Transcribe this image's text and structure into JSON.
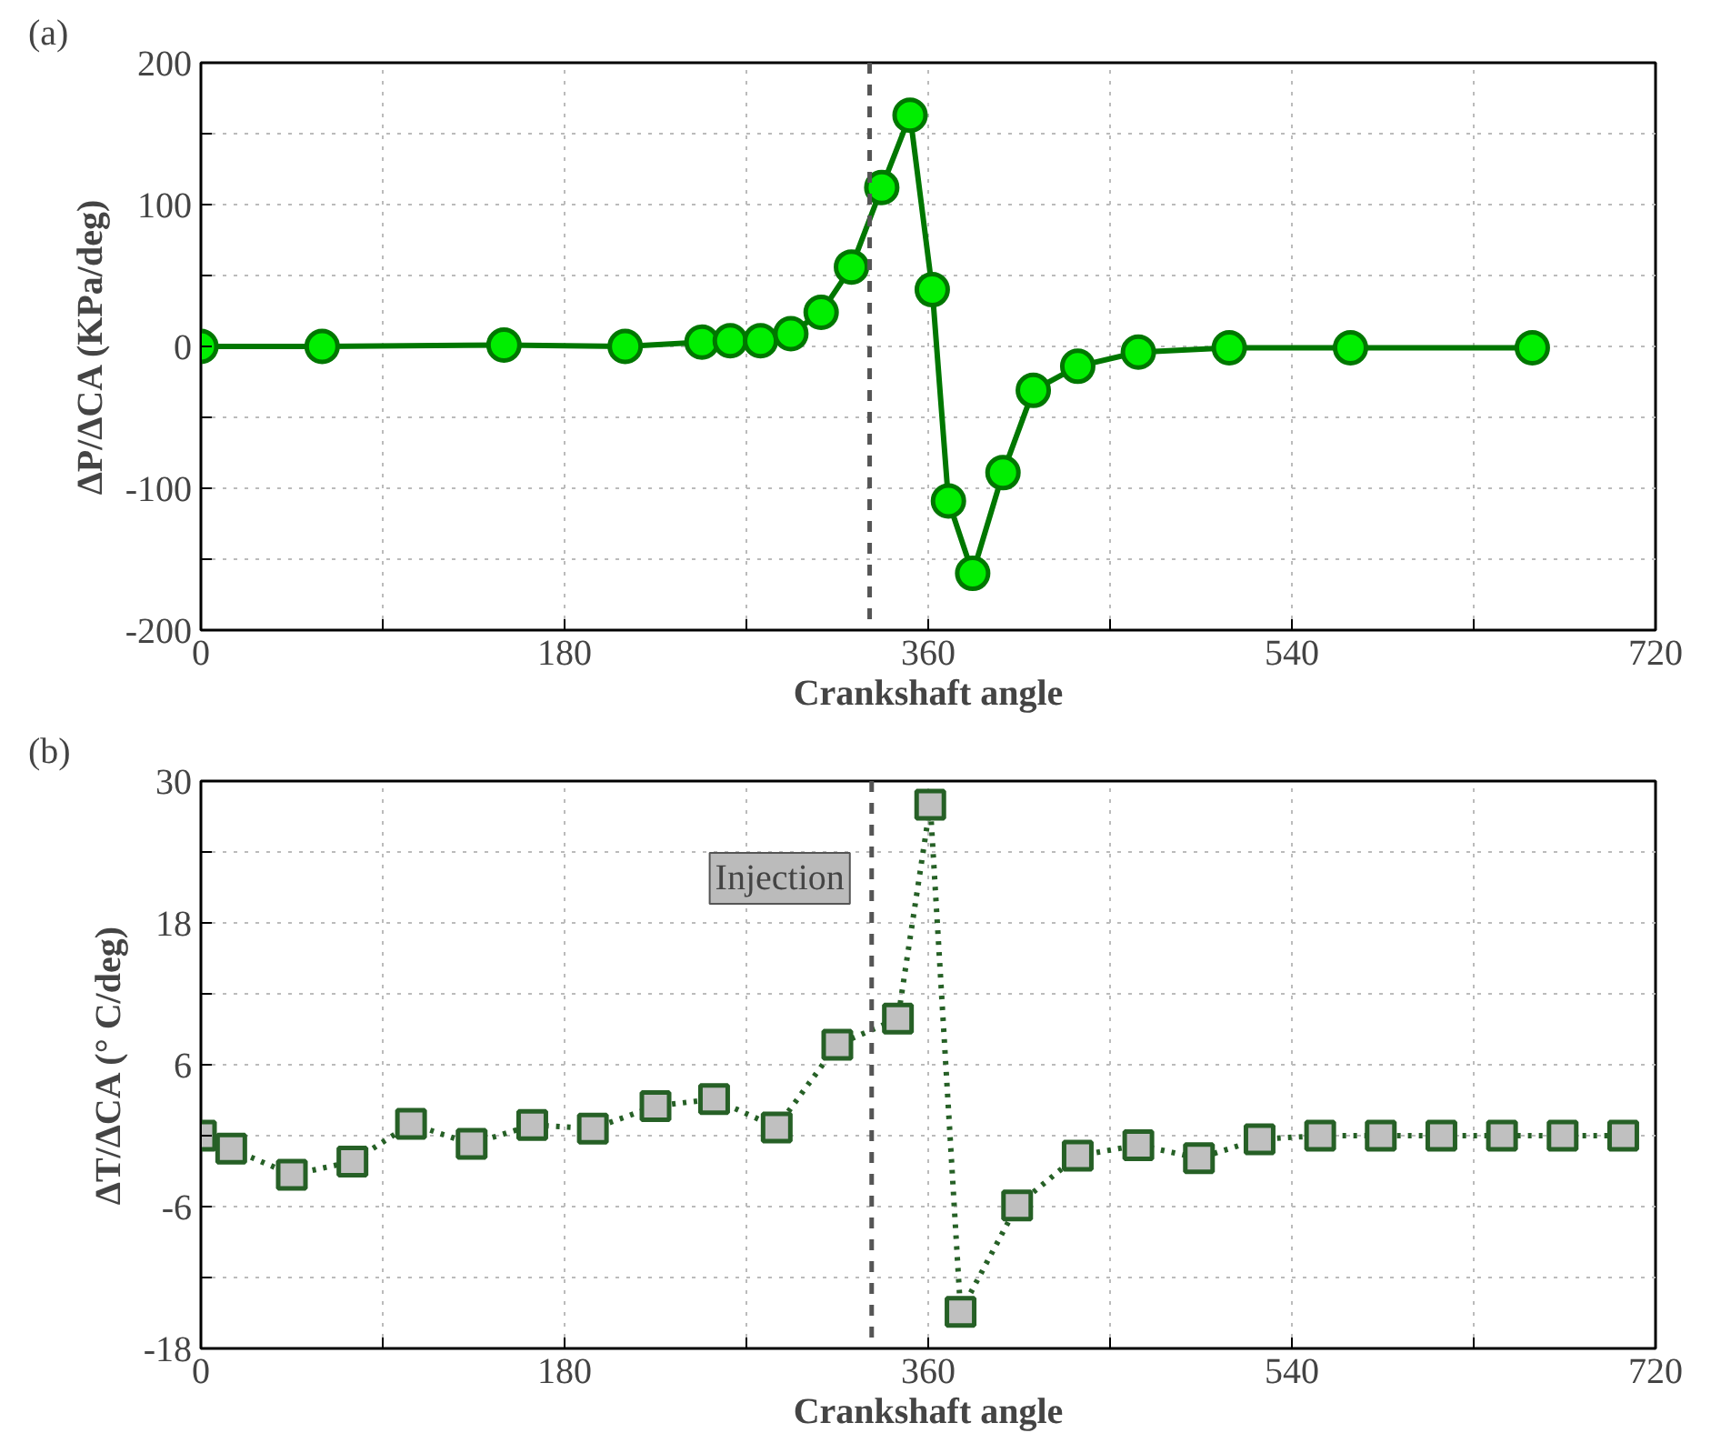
{
  "chart_data": [
    {
      "type": "line",
      "annotations": [
        "(a)"
      ],
      "xlabel": "Crankshaft angle",
      "ylabel": "ΔP/ΔCA (KPa/deg)",
      "xlim": [
        0,
        720
      ],
      "ylim": [
        -200,
        200
      ],
      "xticks": [
        0,
        {
          "value": 90,
          "label": null
        },
        180,
        {
          "value": 270,
          "label": null
        },
        360,
        {
          "value": 450,
          "label": null
        },
        540,
        {
          "value": 630,
          "label": null
        },
        720
      ],
      "yticks": [
        -200,
        {
          "value": -150,
          "label": null
        },
        -100,
        {
          "value": -50,
          "label": null
        },
        0,
        {
          "value": 50,
          "label": null
        },
        100,
        {
          "value": 150,
          "label": null
        },
        200
      ],
      "grid": true,
      "marker": "circle",
      "line_style": "solid",
      "ref_lines": [
        {
          "axis": "x",
          "value": 331,
          "color": "#555555",
          "line_style": "dashed"
        }
      ],
      "series": [
        {
          "color": "#00ee00",
          "x": [
            0,
            60,
            150,
            210,
            248,
            262,
            277,
            292,
            307,
            322,
            337,
            351,
            362,
            370,
            382,
            397,
            412,
            434,
            464,
            509,
            569,
            659
          ],
          "values": [
            0,
            0,
            1,
            0,
            3,
            4,
            4,
            9,
            24,
            56,
            112,
            163,
            40,
            -109,
            -160,
            -89,
            -31,
            -14,
            -4,
            -1,
            -1,
            -1
          ]
        }
      ]
    },
    {
      "type": "line",
      "annotations": [
        "(b)",
        {
          "text": "Injection",
          "x": 332,
          "y": 19
        }
      ],
      "xlabel": "Crankshaft angle",
      "ylabel": "ΔT/ΔCA (° C/deg)",
      "xlim": [
        0,
        720
      ],
      "ylim": [
        -18,
        30
      ],
      "xticks": [
        0,
        {
          "value": 90,
          "label": null
        },
        180,
        {
          "value": 270,
          "label": null
        },
        360,
        {
          "value": 450,
          "label": null
        },
        540,
        {
          "value": 630,
          "label": null
        },
        720
      ],
      "yticks": [
        -18,
        {
          "value": -12,
          "label": null
        },
        -6,
        {
          "value": 0,
          "label": null
        },
        6,
        {
          "value": 12,
          "label": null
        },
        18,
        {
          "value": 24,
          "label": null
        },
        30
      ],
      "grid": true,
      "marker": "square",
      "line_style": "dotted",
      "ref_lines": [
        {
          "axis": "x",
          "value": 332,
          "color": "#555555",
          "line_style": "dashed"
        }
      ],
      "series": [
        {
          "color": "#c0c0c0",
          "x": [
            0,
            15,
            45,
            75,
            104,
            134,
            164,
            194,
            225,
            254,
            285,
            315,
            345,
            361,
            376,
            404,
            434,
            464,
            494,
            524,
            554,
            584,
            614,
            644,
            674,
            704
          ],
          "values": [
            0,
            -1.1,
            -3.3,
            -2.2,
            1,
            -0.7,
            0.9,
            0.6,
            2.5,
            3.1,
            0.7,
            7.7,
            9.9,
            28,
            -14.9,
            -5.9,
            -1.7,
            -0.8,
            -1.9,
            -0.3,
            0,
            0,
            0,
            0,
            0,
            0
          ]
        }
      ]
    }
  ]
}
